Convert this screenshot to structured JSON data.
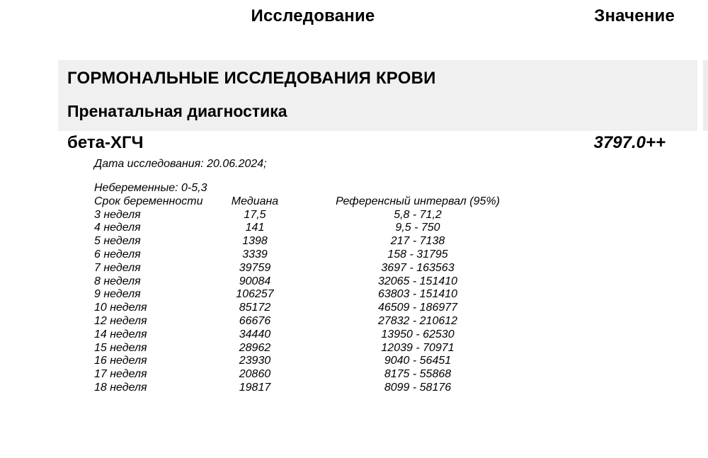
{
  "header": {
    "study_col": "Исследование",
    "value_col": "Значение"
  },
  "section": {
    "title": "ГОРМОНАЛЬНЫЕ ИССЛЕДОВАНИЯ КРОВИ",
    "subtitle": "Пренатальная диагностика"
  },
  "result": {
    "test_name": "бета-ХГЧ",
    "value": "3797.0++",
    "study_date_line": "Дата исследования: 20.06.2024;"
  },
  "reference": {
    "non_pregnant_line": "Небеременные: 0-5,3",
    "table": {
      "columns": [
        "Срок беременности",
        "Медиана",
        "Референсный интервал (95%)"
      ],
      "rows": [
        [
          "3 неделя",
          "17,5",
          "5,8 - 71,2"
        ],
        [
          "4 неделя",
          "141",
          "9,5 - 750"
        ],
        [
          "5 неделя",
          "1398",
          "217 - 7138"
        ],
        [
          "6 неделя",
          "3339",
          "158 - 31795"
        ],
        [
          "7 неделя",
          "39759",
          "3697 - 163563"
        ],
        [
          "8 неделя",
          "90084",
          "32065 - 151410"
        ],
        [
          "9 неделя",
          "106257",
          "63803 - 151410"
        ],
        [
          "10 неделя",
          "85172",
          "46509 - 186977"
        ],
        [
          "12 неделя",
          "66676",
          "27832 - 210612"
        ],
        [
          "14 неделя",
          "34440",
          "13950 - 62530"
        ],
        [
          "15 неделя",
          "28962",
          "12039 - 70971"
        ],
        [
          "16 неделя",
          "23930",
          "9040 - 56451"
        ],
        [
          "17 неделя",
          "20860",
          "8175 - 55868"
        ],
        [
          "18 неделя",
          "19817",
          "8099 - 58176"
        ]
      ]
    }
  },
  "colors": {
    "section_bg": "#f0f0f0",
    "section_edge": "#ececec",
    "text": "#000000",
    "page_bg": "#ffffff"
  }
}
